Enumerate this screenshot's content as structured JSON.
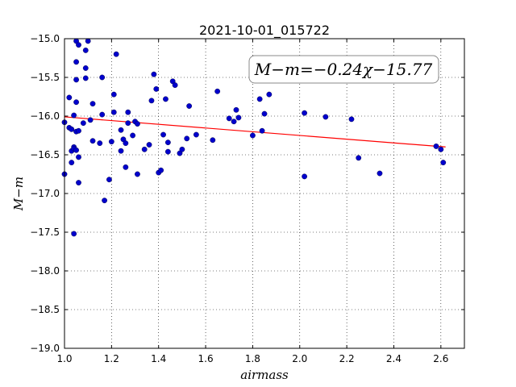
{
  "chart_data": {
    "type": "scatter",
    "title": "2021-10-01_015722",
    "xlabel": "airmass",
    "ylabel": "M−m",
    "xlim": [
      1.0,
      2.7
    ],
    "ylim": [
      -19.0,
      -15.0
    ],
    "y_inverted": true,
    "grid": true,
    "xticks": [
      1.0,
      1.2,
      1.4,
      1.6,
      1.8,
      2.0,
      2.2,
      2.4,
      2.6
    ],
    "xtick_labels": [
      "1.0",
      "1.2",
      "1.4",
      "1.6",
      "1.8",
      "2.0",
      "2.2",
      "2.4",
      "2.6"
    ],
    "yticks": [
      -15.0,
      -15.5,
      -16.0,
      -16.5,
      -17.0,
      -17.5,
      -18.0,
      -18.5,
      -19.0
    ],
    "ytick_labels": [
      "−15.0",
      "−15.5",
      "−16.0",
      "−16.5",
      "−17.0",
      "−17.5",
      "−18.0",
      "−18.5",
      "−19.0"
    ],
    "annotation": "M−m=−0.24χ−15.77",
    "colors": {
      "points": "#0000cc",
      "fit_line": "#ff0000"
    },
    "fit": {
      "slope": -0.24,
      "intercept": -15.77,
      "x_range": [
        1.0,
        2.62
      ]
    },
    "points": {
      "x": [
        1.0,
        1.0,
        1.02,
        1.02,
        1.03,
        1.03,
        1.03,
        1.04,
        1.04,
        1.04,
        1.04,
        1.05,
        1.05,
        1.05,
        1.05,
        1.05,
        1.05,
        1.06,
        1.06,
        1.06,
        1.06,
        1.08,
        1.09,
        1.09,
        1.09,
        1.1,
        1.11,
        1.12,
        1.12,
        1.15,
        1.16,
        1.16,
        1.17,
        1.19,
        1.2,
        1.21,
        1.21,
        1.22,
        1.24,
        1.24,
        1.25,
        1.26,
        1.26,
        1.27,
        1.27,
        1.29,
        1.3,
        1.31,
        1.31,
        1.34,
        1.36,
        1.37,
        1.38,
        1.39,
        1.4,
        1.41,
        1.42,
        1.43,
        1.44,
        1.44,
        1.46,
        1.47,
        1.49,
        1.5,
        1.52,
        1.53,
        1.56,
        1.63,
        1.65,
        1.7,
        1.72,
        1.73,
        1.74,
        1.8,
        1.83,
        1.84,
        1.85,
        1.87,
        2.02,
        2.02,
        2.11,
        2.22,
        2.25,
        2.34,
        2.58,
        2.6,
        2.61
      ],
      "y": [
        -16.75,
        -16.08,
        -15.76,
        -16.15,
        -16.6,
        -16.45,
        -16.17,
        -15.99,
        -16.4,
        -16.42,
        -17.52,
        -15.03,
        -15.3,
        -15.53,
        -15.82,
        -16.2,
        -16.44,
        -15.08,
        -16.53,
        -16.86,
        -16.19,
        -16.09,
        -15.38,
        -15.51,
        -15.15,
        -15.03,
        -16.05,
        -15.84,
        -16.32,
        -16.35,
        -15.5,
        -15.98,
        -17.09,
        -16.82,
        -16.33,
        -15.72,
        -15.95,
        -15.2,
        -16.18,
        -16.45,
        -16.3,
        -16.66,
        -16.35,
        -16.09,
        -15.95,
        -16.25,
        -16.07,
        -16.1,
        -16.75,
        -16.43,
        -16.37,
        -15.8,
        -15.46,
        -15.65,
        -16.73,
        -16.7,
        -16.24,
        -15.78,
        -16.46,
        -16.34,
        -15.55,
        -15.6,
        -16.48,
        -16.43,
        -16.29,
        -15.87,
        -16.24,
        -16.31,
        -15.68,
        -16.03,
        -16.07,
        -15.92,
        -16.02,
        -16.25,
        -15.78,
        -16.19,
        -15.97,
        -15.72,
        -16.78,
        -15.96,
        -16.01,
        -16.04,
        -16.54,
        -16.74,
        -16.39,
        -16.43,
        -16.6
      ]
    }
  }
}
